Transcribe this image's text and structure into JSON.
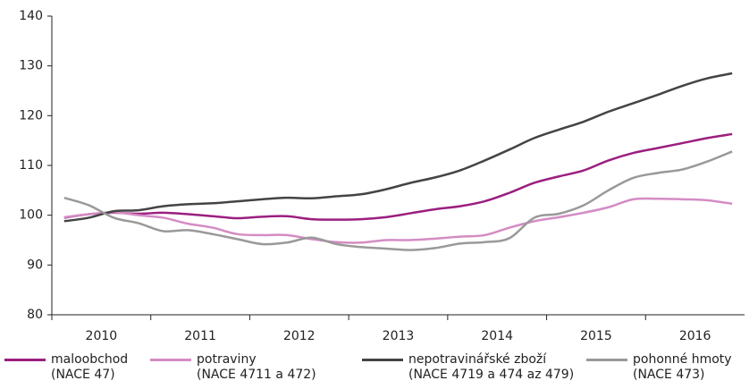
{
  "chart_data": {
    "type": "line",
    "categories": [
      "2010",
      null,
      null,
      null,
      "2011",
      null,
      null,
      null,
      "2012",
      null,
      null,
      null,
      "2013",
      null,
      null,
      null,
      "2014",
      null,
      null,
      null,
      "2015",
      null,
      null,
      null,
      "2016",
      null,
      null,
      null
    ],
    "ylim": [
      80,
      140
    ],
    "yticks": [
      80,
      90,
      100,
      110,
      120,
      130,
      140
    ],
    "series": [
      {
        "name": "maloobchod\n(NACE 47)",
        "color": "#9b1f7f",
        "values": [
          99.5,
          100.2,
          100.5,
          100.3,
          100.5,
          100.2,
          99.8,
          99.4,
          99.7,
          99.8,
          99.2,
          99.1,
          99.2,
          99.6,
          100.4,
          101.2,
          101.8,
          102.8,
          104.5,
          106.5,
          107.8,
          109,
          111,
          112.5,
          113.5,
          114.5,
          115.5,
          116.3
        ]
      },
      {
        "name": "potraviny\n(NACE 4711 a 472)",
        "color": "#d48cc4",
        "values": [
          99.6,
          100.2,
          100.6,
          100.0,
          99.5,
          98.3,
          97.5,
          96.2,
          96,
          96,
          95.2,
          94.6,
          94.5,
          95,
          95,
          95.3,
          95.7,
          96,
          97.5,
          98.8,
          99.6,
          100.5,
          101.6,
          103.2,
          103.3,
          103.2,
          103,
          102.3
        ]
      },
      {
        "name": "nepotravinářské zboží\n(NACE 4719 a 474 az 479)",
        "color": "#444444",
        "values": [
          98.8,
          99.5,
          100.8,
          101.0,
          101.8,
          102.2,
          102.4,
          102.8,
          103.2,
          103.5,
          103.4,
          103.8,
          104.2,
          105.2,
          106.5,
          107.6,
          109,
          111,
          113.2,
          115.5,
          117.2,
          118.8,
          120.8,
          122.5,
          124.2,
          126,
          127.5,
          128.5
        ]
      },
      {
        "name": "pohonné hmoty\n(NACE 473)",
        "color": "#999999",
        "values": [
          103.5,
          102,
          99.5,
          98.4,
          96.8,
          97,
          96.2,
          95.2,
          94.2,
          94.5,
          95.5,
          94.2,
          93.6,
          93.3,
          93,
          93.4,
          94.3,
          94.6,
          95.4,
          99.5,
          100.3,
          102,
          105,
          107.5,
          108.5,
          109.2,
          110.8,
          112.8
        ]
      }
    ]
  }
}
